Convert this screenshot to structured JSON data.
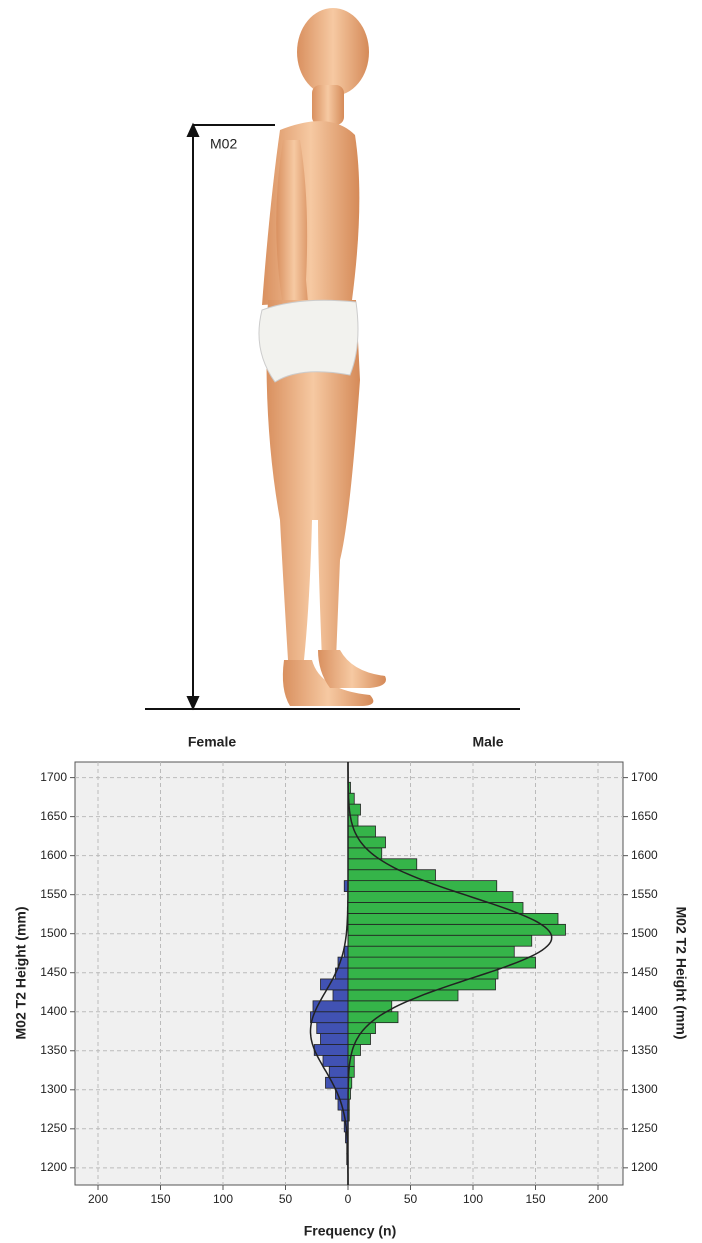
{
  "figure_label": "M02",
  "chart_data": {
    "type": "pyramid-histogram",
    "x_label": "Frequency (n)",
    "y_label": "M02 T2 Height (mm)",
    "bins": [
      1190,
      1204,
      1218,
      1232,
      1246,
      1260,
      1274,
      1288,
      1302,
      1316,
      1330,
      1344,
      1358,
      1372,
      1386,
      1400,
      1414,
      1428,
      1442,
      1456,
      1470,
      1484,
      1498,
      1512,
      1526,
      1540,
      1554,
      1568,
      1582,
      1596,
      1610,
      1624,
      1638,
      1652,
      1666,
      1680,
      1694
    ],
    "series": [
      {
        "name": "Female",
        "side": "left",
        "color": "#4152b3",
        "values": [
          0,
          1,
          1,
          2,
          3,
          5,
          8,
          10,
          18,
          15,
          20,
          27,
          22,
          25,
          30,
          28,
          12,
          22,
          10,
          8,
          3,
          0,
          0,
          0,
          0,
          0,
          3,
          0,
          0,
          0,
          0,
          0,
          0,
          0,
          0,
          0
        ],
        "fit": {
          "mean": 1375,
          "sd": 50,
          "peak": 30
        }
      },
      {
        "name": "Male",
        "side": "right",
        "color": "#35b449",
        "values": [
          0,
          0,
          0,
          0,
          0,
          1,
          1,
          2,
          3,
          5,
          5,
          10,
          18,
          22,
          40,
          35,
          88,
          118,
          120,
          150,
          133,
          147,
          174,
          168,
          140,
          132,
          119,
          70,
          55,
          27,
          30,
          22,
          8,
          10,
          5,
          2
        ],
        "fit": {
          "mean": 1495,
          "sd": 52,
          "peak": 163
        }
      }
    ],
    "xlim": [
      0,
      220
    ],
    "xticks": [
      0,
      50,
      100,
      150,
      200
    ],
    "ylim": [
      1178,
      1720
    ],
    "yticks": [
      1200,
      1250,
      1300,
      1350,
      1400,
      1450,
      1500,
      1550,
      1600,
      1650,
      1700
    ],
    "grid": true
  }
}
